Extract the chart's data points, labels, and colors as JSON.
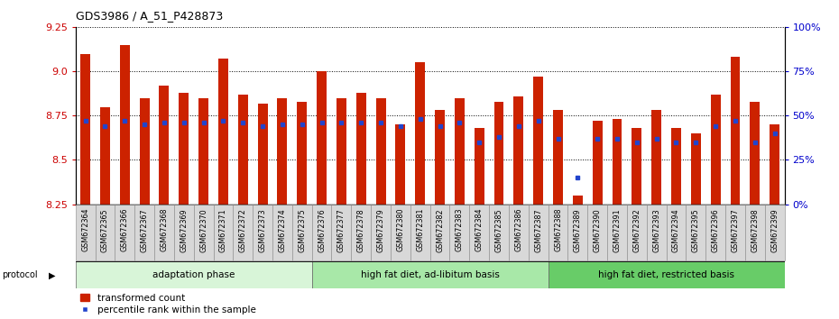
{
  "title": "GDS3986 / A_51_P428873",
  "samples": [
    "GSM672364",
    "GSM672365",
    "GSM672366",
    "GSM672367",
    "GSM672368",
    "GSM672369",
    "GSM672370",
    "GSM672371",
    "GSM672372",
    "GSM672373",
    "GSM672374",
    "GSM672375",
    "GSM672376",
    "GSM672377",
    "GSM672378",
    "GSM672379",
    "GSM672380",
    "GSM672381",
    "GSM672382",
    "GSM672383",
    "GSM672384",
    "GSM672385",
    "GSM672386",
    "GSM672387",
    "GSM672388",
    "GSM672389",
    "GSM672390",
    "GSM672391",
    "GSM672392",
    "GSM672393",
    "GSM672394",
    "GSM672395",
    "GSM672396",
    "GSM672397",
    "GSM672398",
    "GSM672399"
  ],
  "transformed_count": [
    9.1,
    8.8,
    9.15,
    8.85,
    8.92,
    8.88,
    8.85,
    9.07,
    8.87,
    8.82,
    8.85,
    8.83,
    9.0,
    8.85,
    8.88,
    8.85,
    8.7,
    9.05,
    8.78,
    8.85,
    8.68,
    8.83,
    8.86,
    8.97,
    8.78,
    8.3,
    8.72,
    8.73,
    8.68,
    8.78,
    8.68,
    8.65,
    8.87,
    9.08,
    8.83,
    8.7
  ],
  "percentile_rank": [
    47,
    44,
    47,
    45,
    46,
    46,
    46,
    47,
    46,
    44,
    45,
    45,
    46,
    46,
    46,
    46,
    44,
    48,
    44,
    46,
    35,
    38,
    44,
    47,
    37,
    15,
    37,
    37,
    35,
    37,
    35,
    35,
    44,
    47,
    35,
    40
  ],
  "groups": [
    {
      "label": "adaptation phase",
      "start": 0,
      "end": 12,
      "color": "#d8f5d8"
    },
    {
      "label": "high fat diet, ad-libitum basis",
      "start": 12,
      "end": 24,
      "color": "#a8e8a8"
    },
    {
      "label": "high fat diet, restricted basis",
      "start": 24,
      "end": 36,
      "color": "#68cc68"
    }
  ],
  "ylim_left": [
    8.25,
    9.25
  ],
  "ylim_right": [
    0,
    100
  ],
  "yticks_left": [
    8.25,
    8.5,
    8.75,
    9.0,
    9.25
  ],
  "yticks_right": [
    0,
    25,
    50,
    75,
    100
  ],
  "bar_color": "#cc2200",
  "dot_color": "#2244cc",
  "baseline": 8.25
}
